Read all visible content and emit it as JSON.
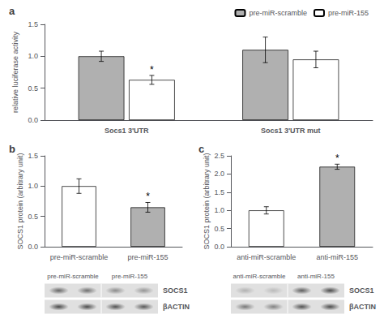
{
  "chart_data": [
    {
      "type": "bar",
      "title": "a",
      "ylabel": "relative luciferase activity",
      "categories": [
        "Socs1 3'UTR",
        "Socs1 3'UTR mut"
      ],
      "series": [
        {
          "name": "pre-miR-scramble",
          "color": "#b0b0b0",
          "values": [
            1.0,
            1.1
          ],
          "errors": [
            0.08,
            0.2
          ]
        },
        {
          "name": "pre-miR-155",
          "color": "#ffffff",
          "values": [
            0.63,
            0.95
          ],
          "errors": [
            0.07,
            0.13
          ]
        }
      ],
      "annotations": [
        {
          "text": "*",
          "series": 1,
          "index": 0
        }
      ],
      "ylim": [
        0.0,
        1.5
      ],
      "yticks": [
        {
          "value": 0.0,
          "label": "0.0"
        },
        {
          "value": 0.5,
          "label": "0.5"
        },
        {
          "value": 1.0,
          "label": "1.0"
        },
        {
          "value": 1.5,
          "label": "1.5"
        }
      ],
      "grid": false,
      "legend": "upper right"
    },
    {
      "type": "bar",
      "title": "b",
      "ylabel": "SOCS1 protein (arbitrary unit)",
      "categories": [
        "pre-miR-scramble",
        "pre-miR-155"
      ],
      "values": [
        1.0,
        0.65
      ],
      "errors": [
        0.12,
        0.08
      ],
      "colors": [
        "#ffffff",
        "#b0b0b0"
      ],
      "annotations": [
        {
          "text": "*",
          "index": 1
        }
      ],
      "ylim": [
        0.0,
        1.5
      ],
      "yticks": [
        {
          "value": 0.0,
          "label": "0.0"
        },
        {
          "value": 0.5,
          "label": "0.5"
        },
        {
          "value": 1.0,
          "label": "1.0"
        },
        {
          "value": 1.5,
          "label": "1.5"
        }
      ],
      "grid": false,
      "blots": {
        "lane_labels": [
          "pre-miR-scramble",
          "pre-miR-155"
        ],
        "rows": [
          {
            "label": "SOCS1",
            "bands": [
              0.65,
              0.6,
              0.45,
              0.4
            ]
          },
          {
            "label": "βACTIN",
            "bands": [
              0.8,
              0.78,
              0.75,
              0.72
            ]
          }
        ]
      }
    },
    {
      "type": "bar",
      "title": "c",
      "ylabel": "SOCS1 protein (arbitrary unit)",
      "categories": [
        "anti-miR-scramble",
        "anti-miR-155"
      ],
      "values": [
        1.0,
        2.2
      ],
      "errors": [
        0.1,
        0.07
      ],
      "colors": [
        "#ffffff",
        "#b0b0b0"
      ],
      "annotations": [
        {
          "text": "*",
          "index": 1
        }
      ],
      "ylim": [
        0.0,
        2.5
      ],
      "yticks": [
        {
          "value": 0.0,
          "label": "0.0"
        },
        {
          "value": 0.5,
          "label": "0.5"
        },
        {
          "value": 1.0,
          "label": "1.0"
        },
        {
          "value": 1.5,
          "label": "1.5"
        },
        {
          "value": 2.0,
          "label": "2.0"
        },
        {
          "value": 2.5,
          "label": "2.5"
        }
      ],
      "grid": false,
      "blots": {
        "lane_labels": [
          "anti-miR-scramble",
          "anti-miR-155"
        ],
        "rows": [
          {
            "label": "SOCS1",
            "bands": [
              0.25,
              0.2,
              0.7,
              0.8
            ]
          },
          {
            "label": "βACTIN",
            "bands": [
              0.55,
              0.5,
              0.75,
              0.78
            ]
          }
        ]
      }
    }
  ]
}
